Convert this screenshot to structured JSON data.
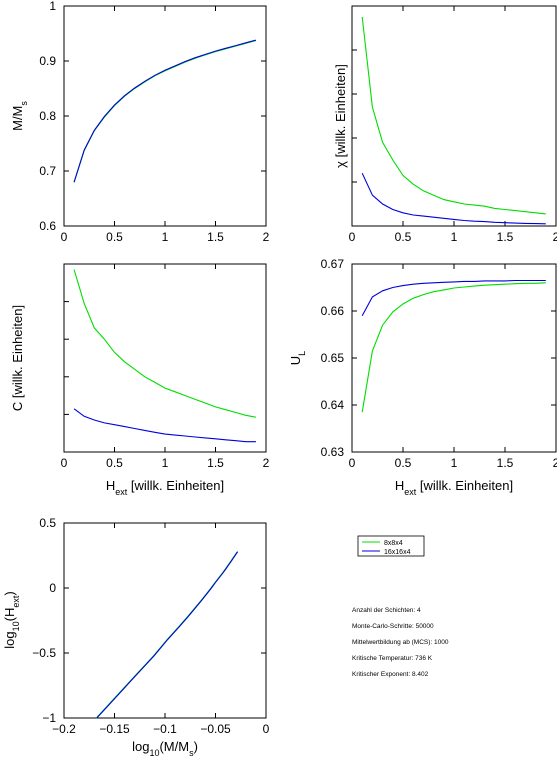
{
  "legend": {
    "entries": [
      {
        "label": "8x8x4",
        "color": "#00dd00"
      },
      {
        "label": "16x16x4",
        "color": "#0000dd"
      }
    ]
  },
  "info": {
    "lines": [
      "Anzahl der Schichten: 4",
      "Monte-Carlo-Schritte: 50000",
      "Mittelwertbildung ab (MCS): 1000",
      "Kritische Temperatur: 736 K",
      "Kritischer Exponent: 8.402"
    ]
  },
  "chart_data": [
    {
      "id": "mag",
      "type": "line",
      "xlabel": "",
      "ylabel": "M/M_s",
      "xlim": [
        0,
        2
      ],
      "ylim": [
        0.6,
        1.0
      ],
      "xticks": [
        "0",
        "0.5",
        "1",
        "1.5",
        "2"
      ],
      "yticks": [
        "0.6",
        "0.7",
        "0.8",
        "0.9",
        "1"
      ],
      "series": [
        {
          "name": "8x8x4",
          "color": "#00dd00",
          "x": [
            0.1,
            0.2,
            0.3,
            0.4,
            0.5,
            0.6,
            0.7,
            0.8,
            0.9,
            1.0,
            1.1,
            1.2,
            1.3,
            1.4,
            1.5,
            1.6,
            1.7,
            1.8,
            1.9
          ],
          "y": [
            0.679,
            0.737,
            0.773,
            0.798,
            0.819,
            0.836,
            0.85,
            0.862,
            0.873,
            0.882,
            0.89,
            0.898,
            0.905,
            0.911,
            0.917,
            0.922,
            0.927,
            0.932,
            0.937
          ]
        },
        {
          "name": "16x16x4",
          "color": "#0000dd",
          "x": [
            0.1,
            0.2,
            0.3,
            0.4,
            0.5,
            0.6,
            0.7,
            0.8,
            0.9,
            1.0,
            1.1,
            1.2,
            1.3,
            1.4,
            1.5,
            1.6,
            1.7,
            1.8,
            1.9
          ],
          "y": [
            0.68,
            0.738,
            0.774,
            0.799,
            0.82,
            0.837,
            0.851,
            0.863,
            0.874,
            0.883,
            0.891,
            0.899,
            0.906,
            0.912,
            0.918,
            0.923,
            0.928,
            0.933,
            0.938
          ]
        }
      ]
    },
    {
      "id": "chi",
      "type": "line",
      "xlabel": "",
      "ylabel": "χ [willk. Einheiten]",
      "xlim": [
        0,
        2
      ],
      "ylim": [
        0,
        1
      ],
      "xticks": [
        "0",
        "0.5",
        "1",
        "1.5",
        "2"
      ],
      "yticks": [],
      "series": [
        {
          "name": "8x8x4",
          "color": "#00dd00",
          "x": [
            0.1,
            0.2,
            0.3,
            0.4,
            0.5,
            0.6,
            0.7,
            0.8,
            0.9,
            1.0,
            1.1,
            1.2,
            1.3,
            1.4,
            1.5,
            1.6,
            1.7,
            1.8,
            1.9
          ],
          "y": [
            0.95,
            0.54,
            0.38,
            0.3,
            0.23,
            0.19,
            0.16,
            0.14,
            0.12,
            0.11,
            0.1,
            0.095,
            0.09,
            0.08,
            0.075,
            0.07,
            0.065,
            0.06,
            0.055
          ]
        },
        {
          "name": "16x16x4",
          "color": "#0000dd",
          "x": [
            0.1,
            0.2,
            0.3,
            0.4,
            0.5,
            0.6,
            0.7,
            0.8,
            0.9,
            1.0,
            1.1,
            1.2,
            1.3,
            1.4,
            1.5,
            1.6,
            1.7,
            1.8,
            1.9
          ],
          "y": [
            0.24,
            0.14,
            0.1,
            0.075,
            0.06,
            0.05,
            0.045,
            0.04,
            0.035,
            0.03,
            0.025,
            0.022,
            0.02,
            0.017,
            0.015,
            0.013,
            0.012,
            0.011,
            0.01
          ]
        }
      ]
    },
    {
      "id": "heat",
      "type": "line",
      "xlabel": "H_ext [willk. Einheiten]",
      "ylabel": "C [willk. Einheiten]",
      "xlim": [
        0,
        2
      ],
      "ylim": [
        0,
        1
      ],
      "xticks": [
        "0",
        "0.5",
        "1",
        "1.5",
        "2"
      ],
      "yticks": [],
      "series": [
        {
          "name": "8x8x4",
          "color": "#00dd00",
          "x": [
            0.1,
            0.2,
            0.3,
            0.4,
            0.5,
            0.6,
            0.7,
            0.8,
            0.9,
            1.0,
            1.1,
            1.2,
            1.3,
            1.4,
            1.5,
            1.6,
            1.7,
            1.8,
            1.9
          ],
          "y": [
            0.97,
            0.79,
            0.66,
            0.6,
            0.53,
            0.48,
            0.44,
            0.4,
            0.37,
            0.34,
            0.32,
            0.3,
            0.28,
            0.26,
            0.24,
            0.225,
            0.21,
            0.195,
            0.185
          ]
        },
        {
          "name": "16x16x4",
          "color": "#0000dd",
          "x": [
            0.1,
            0.2,
            0.3,
            0.4,
            0.5,
            0.6,
            0.7,
            0.8,
            0.9,
            1.0,
            1.1,
            1.2,
            1.3,
            1.4,
            1.5,
            1.6,
            1.7,
            1.8,
            1.9
          ],
          "y": [
            0.23,
            0.19,
            0.17,
            0.155,
            0.145,
            0.135,
            0.125,
            0.115,
            0.105,
            0.095,
            0.09,
            0.085,
            0.08,
            0.075,
            0.07,
            0.065,
            0.06,
            0.055,
            0.055
          ]
        }
      ]
    },
    {
      "id": "binder",
      "type": "line",
      "xlabel": "H_ext [willk. Einheiten]",
      "ylabel": "U_L",
      "xlim": [
        0,
        2
      ],
      "ylim": [
        0.63,
        0.67
      ],
      "xticks": [
        "0",
        "0.5",
        "1",
        "1.5",
        "2"
      ],
      "yticks": [
        "0.63",
        "0.64",
        "0.65",
        "0.66",
        "0.67"
      ],
      "series": [
        {
          "name": "8x8x4",
          "color": "#00dd00",
          "x": [
            0.1,
            0.2,
            0.3,
            0.4,
            0.5,
            0.6,
            0.7,
            0.8,
            0.9,
            1.0,
            1.1,
            1.2,
            1.3,
            1.4,
            1.5,
            1.6,
            1.7,
            1.8,
            1.9
          ],
          "y": [
            0.6385,
            0.6515,
            0.657,
            0.6598,
            0.6615,
            0.6627,
            0.6635,
            0.6641,
            0.6645,
            0.6649,
            0.6651,
            0.6653,
            0.6655,
            0.6656,
            0.6657,
            0.6658,
            0.6659,
            0.6659,
            0.666
          ]
        },
        {
          "name": "16x16x4",
          "color": "#0000dd",
          "x": [
            0.1,
            0.2,
            0.3,
            0.4,
            0.5,
            0.6,
            0.7,
            0.8,
            0.9,
            1.0,
            1.1,
            1.2,
            1.3,
            1.4,
            1.5,
            1.6,
            1.7,
            1.8,
            1.9
          ],
          "y": [
            0.659,
            0.663,
            0.6643,
            0.665,
            0.6654,
            0.6657,
            0.6659,
            0.666,
            0.6661,
            0.6662,
            0.6663,
            0.6663,
            0.6664,
            0.6664,
            0.6664,
            0.6665,
            0.6665,
            0.6665,
            0.6665
          ]
        }
      ]
    },
    {
      "id": "loglog",
      "type": "line",
      "xlabel": "log10(M/M_s)",
      "ylabel": "log10(H_ext)",
      "xlim": [
        -0.2,
        0
      ],
      "ylim": [
        -1,
        0.5
      ],
      "xticks": [
        "−0.2",
        "−0.15",
        "−0.1",
        "−0.05",
        "0"
      ],
      "yticks": [
        "−1",
        "−0.5",
        "0",
        "0.5"
      ],
      "series": [
        {
          "name": "8x8x4",
          "color": "#00dd00",
          "x": [
            -0.168,
            -0.1325,
            -0.1115,
            -0.098,
            -0.0867,
            -0.0778,
            -0.0706,
            -0.0644,
            -0.0591,
            -0.0545,
            -0.0506,
            -0.0467,
            -0.0433,
            -0.0402,
            -0.0375,
            -0.035,
            -0.0328,
            -0.0306,
            -0.0284
          ],
          "y": [
            -1.0,
            -0.699,
            -0.523,
            -0.398,
            -0.301,
            -0.222,
            -0.155,
            -0.097,
            -0.046,
            0.0,
            0.041,
            0.079,
            0.114,
            0.146,
            0.176,
            0.204,
            0.23,
            0.255,
            0.279
          ]
        },
        {
          "name": "16x16x4",
          "color": "#0000dd",
          "x": [
            -0.1675,
            -0.132,
            -0.111,
            -0.0975,
            -0.0862,
            -0.0773,
            -0.0701,
            -0.064,
            -0.0587,
            -0.0541,
            -0.0502,
            -0.0463,
            -0.0429,
            -0.0398,
            -0.0371,
            -0.0346,
            -0.0324,
            -0.0302,
            -0.028
          ],
          "y": [
            -1.0,
            -0.699,
            -0.523,
            -0.398,
            -0.301,
            -0.222,
            -0.155,
            -0.097,
            -0.046,
            0.0,
            0.041,
            0.079,
            0.114,
            0.146,
            0.176,
            0.204,
            0.23,
            0.255,
            0.279
          ]
        }
      ]
    }
  ]
}
